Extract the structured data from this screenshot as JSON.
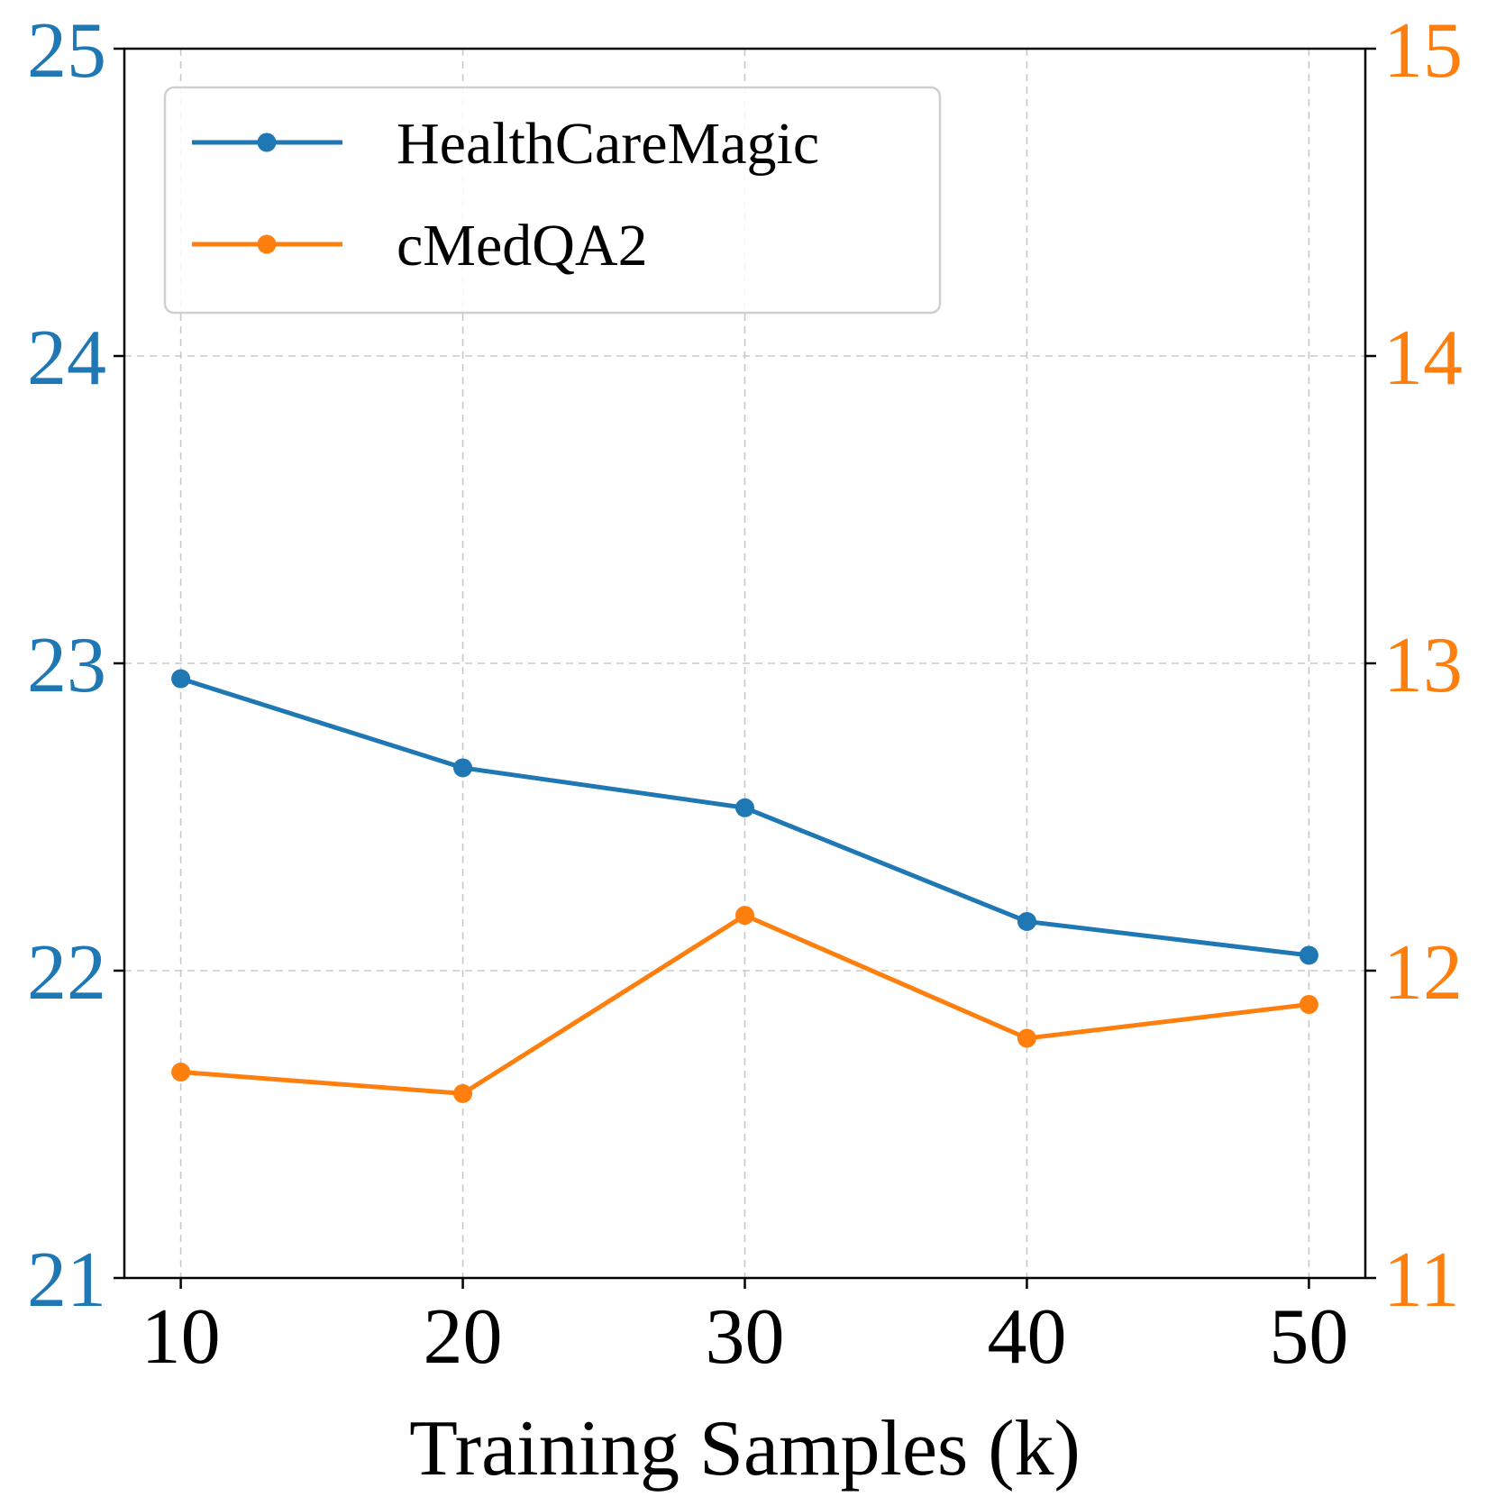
{
  "chart_data": {
    "type": "line",
    "title": "",
    "xlabel": "Training Samples (k)",
    "ylabel_left": "",
    "ylabel_right": "",
    "x": [
      10,
      20,
      30,
      40,
      50
    ],
    "x_ticks": [
      "10",
      "20",
      "30",
      "40",
      "50"
    ],
    "xlim": [
      8,
      52
    ],
    "y_left_ticks": [
      "21",
      "22",
      "23",
      "24",
      "25"
    ],
    "ylim_left": [
      21,
      25
    ],
    "y_right_ticks": [
      "11",
      "12",
      "13",
      "14",
      "15"
    ],
    "ylim_right": [
      11,
      15
    ],
    "grid": true,
    "legend_position": "upper-left",
    "series": [
      {
        "name": "HealthCareMagic",
        "axis": "left",
        "color": "#1f77b4",
        "values": [
          22.95,
          22.66,
          22.53,
          22.16,
          22.05
        ]
      },
      {
        "name": "cMedQA2",
        "axis": "right",
        "color": "#ff7f0e",
        "values": [
          11.67,
          11.6,
          12.18,
          11.78,
          11.89
        ]
      }
    ]
  }
}
